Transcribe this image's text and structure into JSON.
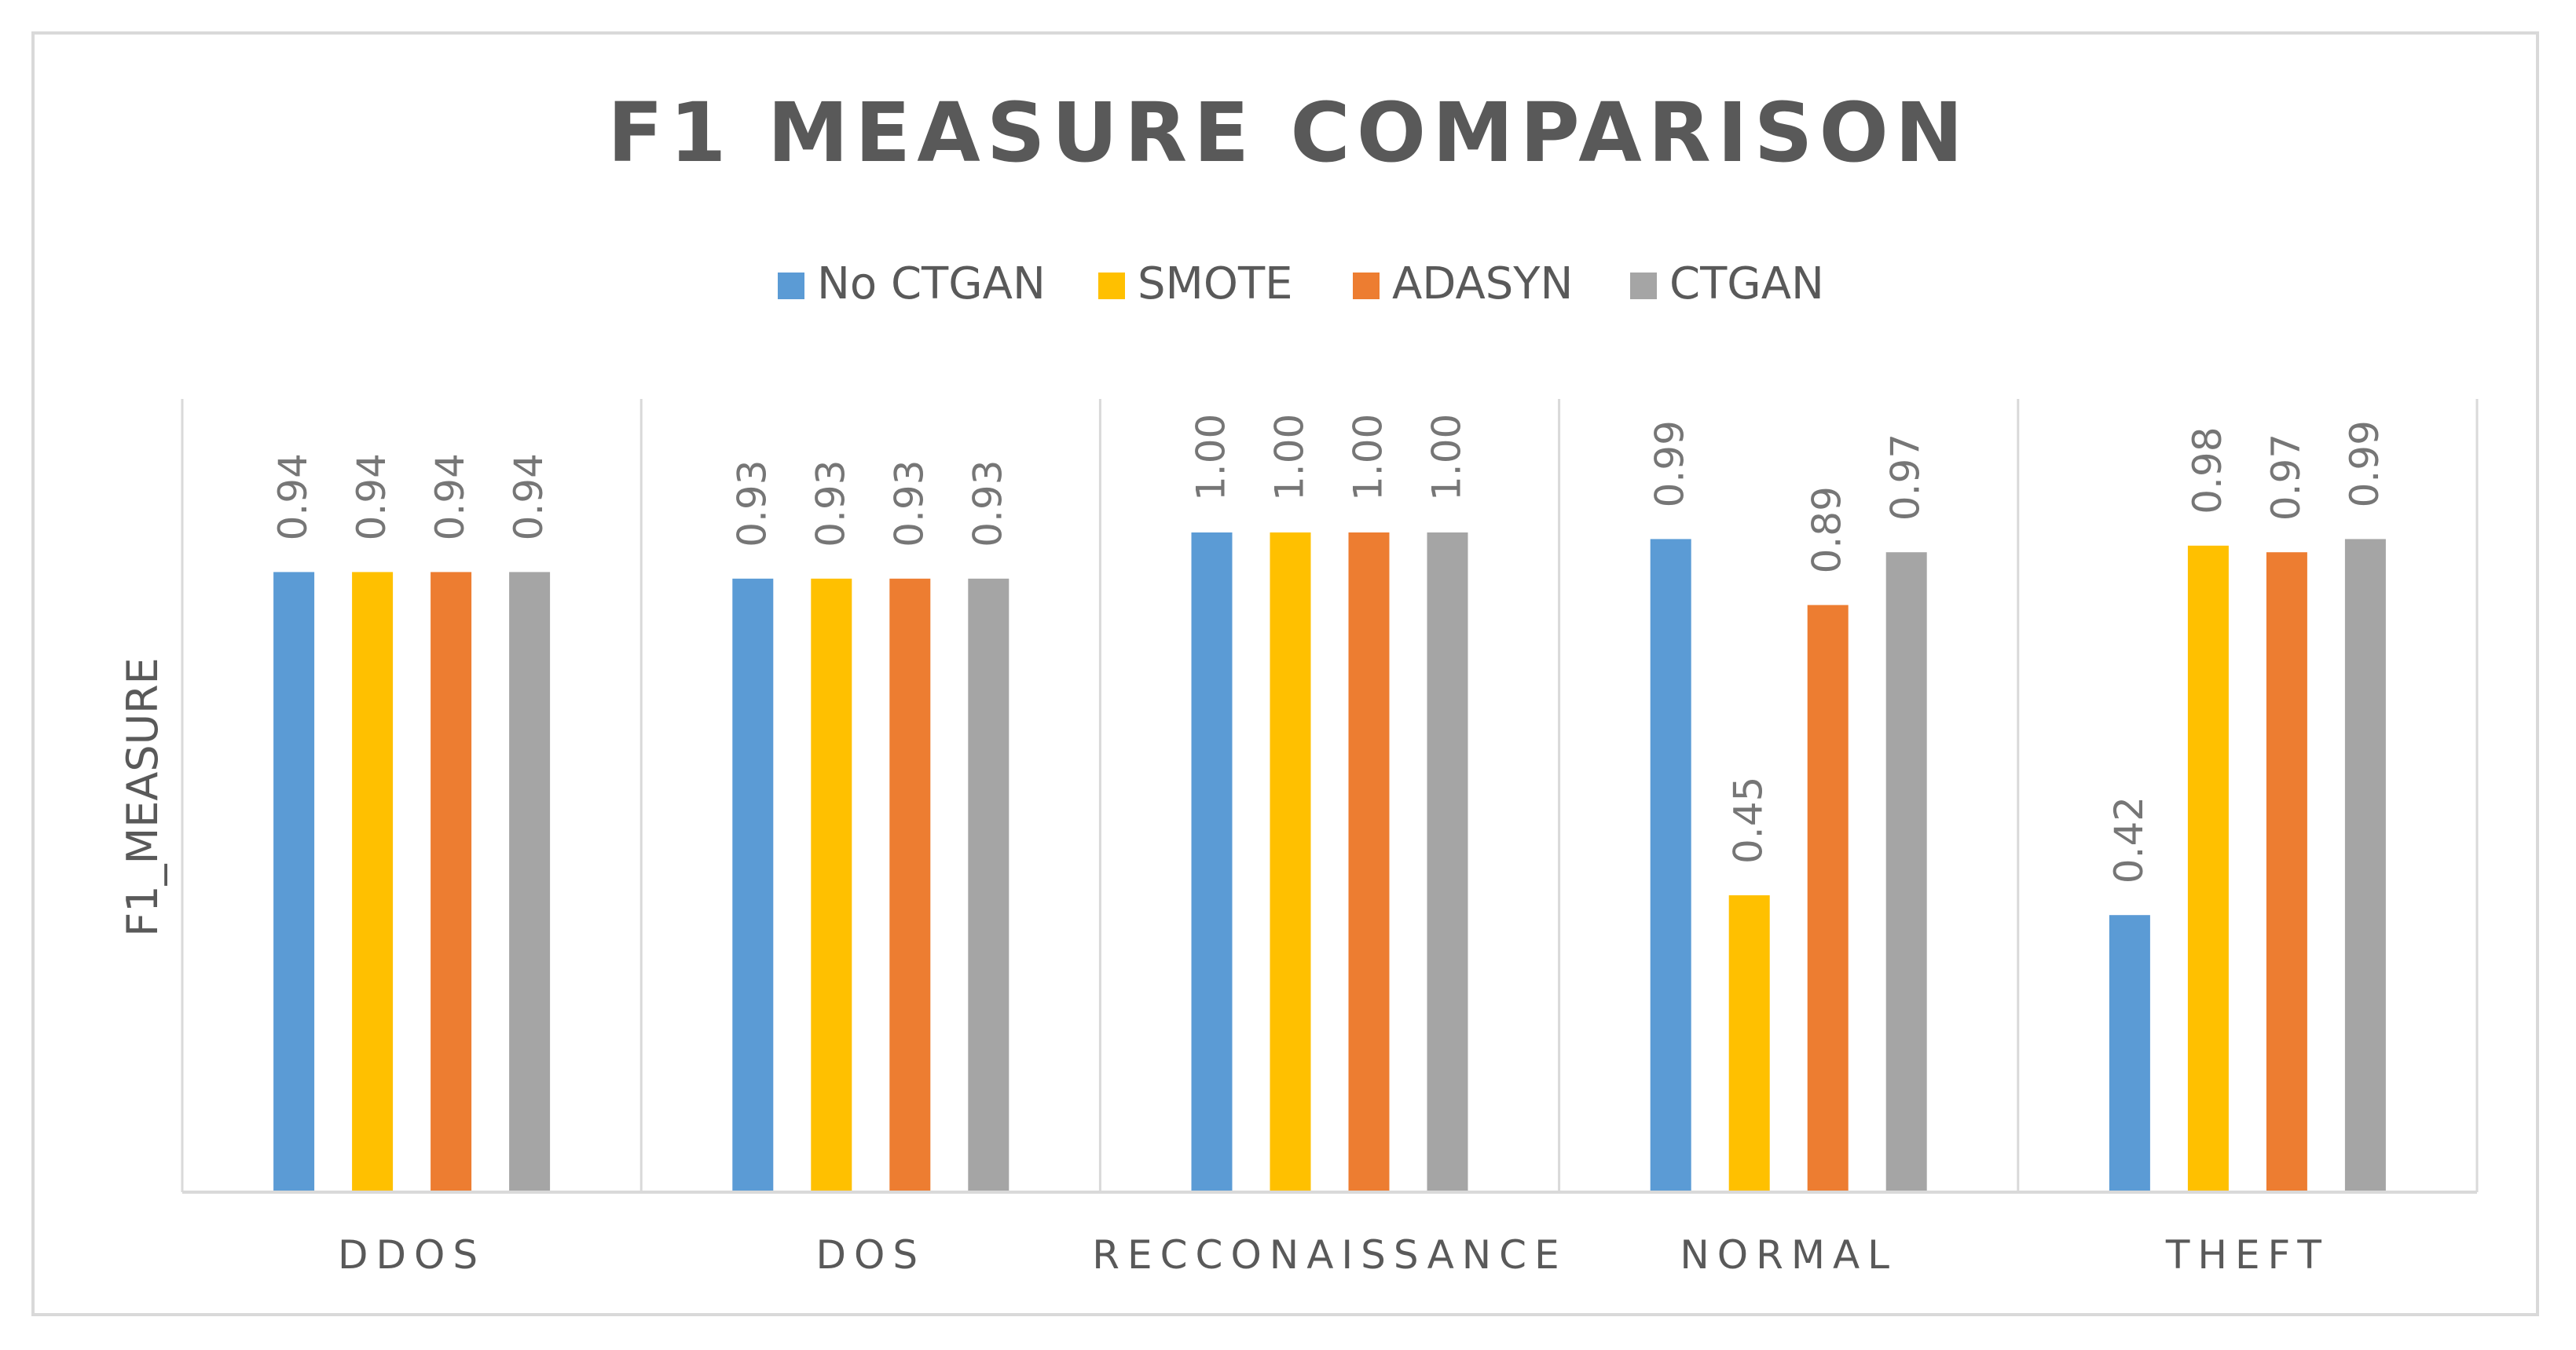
{
  "chart_data": {
    "type": "bar",
    "title": "F1 MEASURE COMPARISON",
    "xlabel": "",
    "ylabel": "F1_MEASURE",
    "ylim": [
      0,
      1.0
    ],
    "legend_position": "top",
    "grid": false,
    "categories": [
      "DDOS",
      "DOS",
      "RECCONAISSANCE",
      "NORMAL",
      "THEFT"
    ],
    "series": [
      {
        "name": "No CTGAN",
        "color": "#5B9BD5",
        "values": [
          0.94,
          0.93,
          1.0,
          0.99,
          0.42
        ],
        "labels": [
          "0.94",
          "0.93",
          "1.00",
          "0.99",
          "0.42"
        ]
      },
      {
        "name": "SMOTE",
        "color": "#FFC000",
        "values": [
          0.94,
          0.93,
          1.0,
          0.45,
          0.98
        ],
        "labels": [
          "0.94",
          "0.93",
          "1.00",
          "0.45",
          "0.98"
        ]
      },
      {
        "name": "ADASYN",
        "color": "#ED7D31",
        "values": [
          0.94,
          0.93,
          1.0,
          0.89,
          0.97
        ],
        "labels": [
          "0.94",
          "0.93",
          "1.00",
          "0.89",
          "0.97"
        ]
      },
      {
        "name": "CTGAN",
        "color": "#A5A5A5",
        "values": [
          0.94,
          0.93,
          1.0,
          0.97,
          0.99
        ],
        "labels": [
          "0.94",
          "0.93",
          "1.00",
          "0.97",
          "0.99"
        ]
      }
    ]
  }
}
